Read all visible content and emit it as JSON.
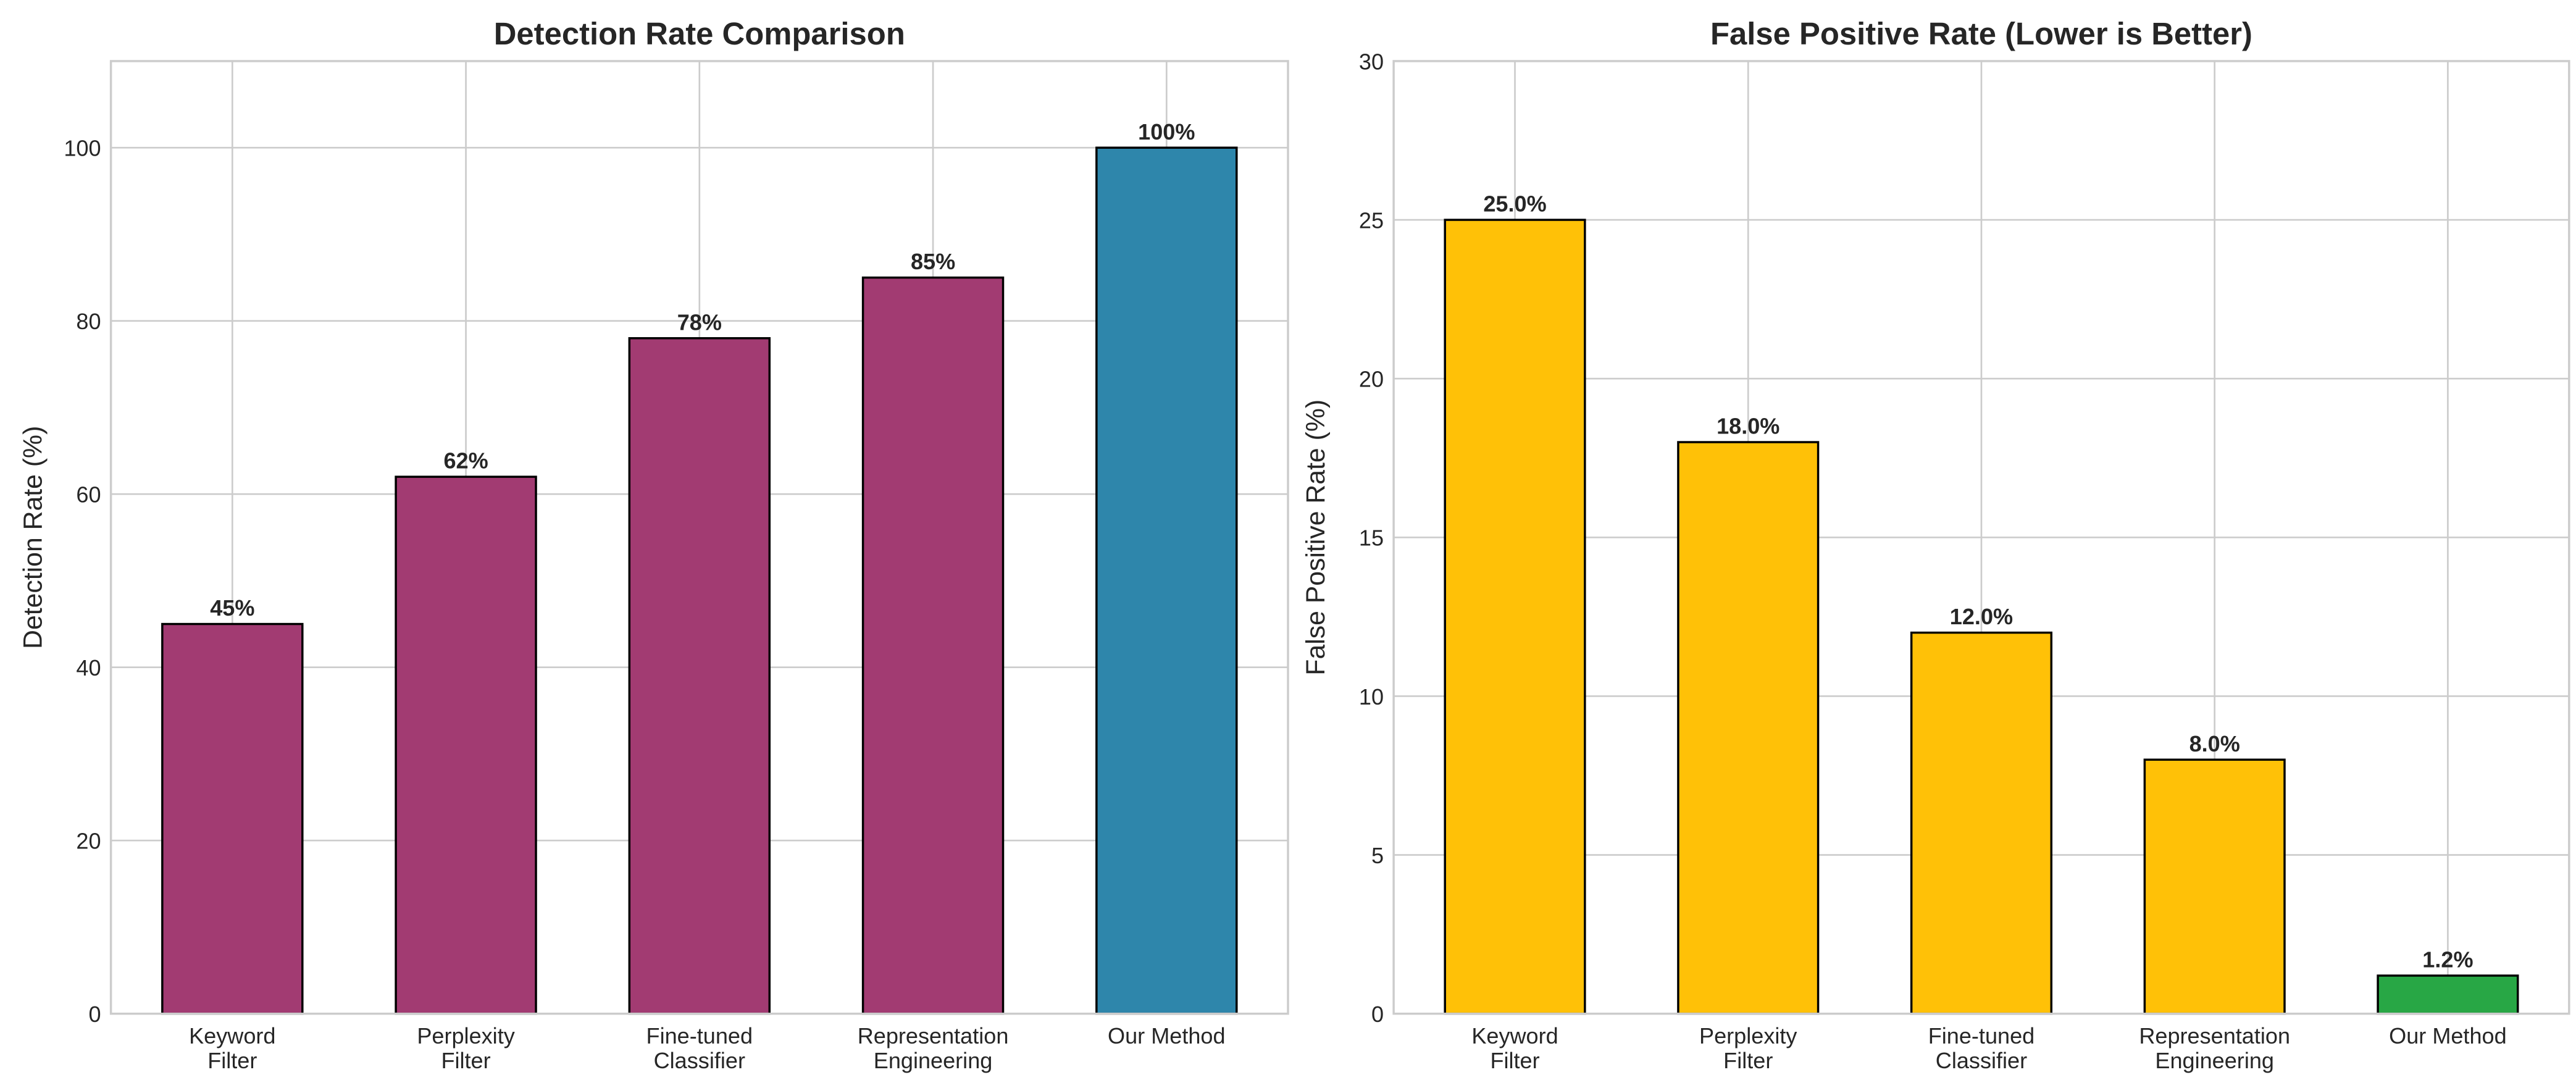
{
  "chart_data": [
    {
      "type": "bar",
      "title": "Detection Rate Comparison",
      "xlabel": "",
      "ylabel": "Detection Rate (%)",
      "categories": [
        "Keyword\nFilter",
        "Perplexity\nFilter",
        "Fine-tuned\nClassifier",
        "Representation\nEngineering",
        "Our Method"
      ],
      "values": [
        45,
        62,
        78,
        85,
        100
      ],
      "data_labels": [
        "45%",
        "62%",
        "78%",
        "85%",
        "100%"
      ],
      "bar_colors": [
        "#A23B72",
        "#A23B72",
        "#A23B72",
        "#A23B72",
        "#2E86AB"
      ],
      "ylim": [
        0,
        110
      ],
      "yticks": [
        0,
        20,
        40,
        60,
        80,
        100
      ],
      "grid": true
    },
    {
      "type": "bar",
      "title": "False Positive Rate (Lower is Better)",
      "xlabel": "",
      "ylabel": "False Positive Rate (%)",
      "categories": [
        "Keyword\nFilter",
        "Perplexity\nFilter",
        "Fine-tuned\nClassifier",
        "Representation\nEngineering",
        "Our Method"
      ],
      "values": [
        25.0,
        18.0,
        12.0,
        8.0,
        1.2
      ],
      "data_labels": [
        "25.0%",
        "18.0%",
        "12.0%",
        "8.0%",
        "1.2%"
      ],
      "bar_colors": [
        "#FFC107",
        "#FFC107",
        "#FFC107",
        "#FFC107",
        "#28A745"
      ],
      "ylim": [
        0,
        30
      ],
      "yticks": [
        0,
        5,
        10,
        15,
        20,
        25,
        30
      ],
      "grid": true
    }
  ]
}
